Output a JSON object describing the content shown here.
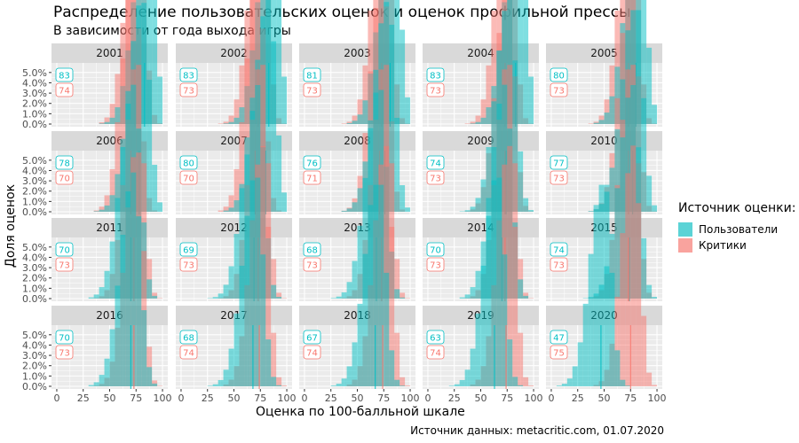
{
  "chart_data": {
    "type": "histogram-facets",
    "title": "Распределение пользовательских оценок и оценок профильной прессы",
    "subtitle": "В зависимости от года выхода игры",
    "xlabel": "Оценка по 100-балльной шкале",
    "ylabel": "Доля оценок",
    "caption": "Источник данных: metacritic.com, 01.07.2020",
    "xlim": [
      0,
      100
    ],
    "x_ticks": [
      "0",
      "25",
      "50",
      "75",
      "100"
    ],
    "ylim": [
      0,
      0.055
    ],
    "y_ticks": [
      "0.0%",
      "1.0%",
      "2.0%",
      "3.0%",
      "4.0%",
      "5.0%"
    ],
    "grid": true,
    "legend": {
      "title": "Источник оценки:",
      "position": "right",
      "entries": [
        {
          "name": "Пользователи",
          "color": "#00BFC4"
        },
        {
          "name": "Критики",
          "color": "#F8766D"
        }
      ]
    },
    "colors": {
      "users": "#00BFC4",
      "critics": "#F8766D",
      "panel_bg": "#EBEBEB",
      "strip_bg": "#D9D9D9"
    },
    "facets": [
      {
        "year": "2001",
        "user_mean": 83,
        "critic_mean": 74
      },
      {
        "year": "2002",
        "user_mean": 83,
        "critic_mean": 73
      },
      {
        "year": "2003",
        "user_mean": 81,
        "critic_mean": 73
      },
      {
        "year": "2004",
        "user_mean": 83,
        "critic_mean": 73
      },
      {
        "year": "2005",
        "user_mean": 80,
        "critic_mean": 73
      },
      {
        "year": "2006",
        "user_mean": 78,
        "critic_mean": 70
      },
      {
        "year": "2007",
        "user_mean": 80,
        "critic_mean": 70
      },
      {
        "year": "2008",
        "user_mean": 76,
        "critic_mean": 71
      },
      {
        "year": "2009",
        "user_mean": 74,
        "critic_mean": 73
      },
      {
        "year": "2010",
        "user_mean": 77,
        "critic_mean": 73
      },
      {
        "year": "2011",
        "user_mean": 70,
        "critic_mean": 73
      },
      {
        "year": "2012",
        "user_mean": 69,
        "critic_mean": 73
      },
      {
        "year": "2013",
        "user_mean": 68,
        "critic_mean": 73
      },
      {
        "year": "2014",
        "user_mean": 70,
        "critic_mean": 73
      },
      {
        "year": "2015",
        "user_mean": 74,
        "critic_mean": 73
      },
      {
        "year": "2016",
        "user_mean": 70,
        "critic_mean": 73
      },
      {
        "year": "2017",
        "user_mean": 68,
        "critic_mean": 74
      },
      {
        "year": "2018",
        "user_mean": 67,
        "critic_mean": 74
      },
      {
        "year": "2019",
        "user_mean": 63,
        "critic_mean": 74
      },
      {
        "year": "2020",
        "user_mean": 47,
        "critic_mean": 75
      }
    ],
    "histogram_bins": {
      "start": 0,
      "width": 5,
      "count": 20
    },
    "sd": {
      "users": 12,
      "critics": 11
    }
  }
}
